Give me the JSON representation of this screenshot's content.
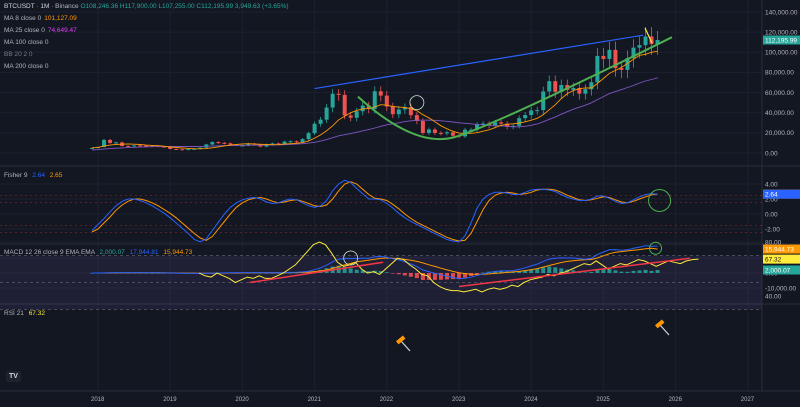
{
  "header": {
    "symbol": "BTCUSDT",
    "interval": "1M",
    "exchange": "Binance",
    "ohlc": "O108,246.36 H117,900.00 L107,255.00 C112,195.99 3,949.63 (+3.65%)",
    "ma_rows": [
      {
        "label": "MA 8 close 0",
        "value": "101,127.09",
        "color": "#ff9800"
      },
      {
        "label": "MA 25 close 0",
        "value": "74,649.47",
        "color": "#e040fb"
      },
      {
        "label": "MA 100 close 0",
        "value": "",
        "color": "#b2b5be"
      },
      {
        "label": "BB 20 2 0",
        "value": "",
        "color": "#787b86"
      },
      {
        "label": "MA 200 close 0",
        "value": "",
        "color": "#b2b5be"
      }
    ]
  },
  "fisher": {
    "label": "Fisher 9",
    "v1": "2.64",
    "v2": "2.65",
    "c1": "#2962ff",
    "c2": "#ff9800"
  },
  "macd": {
    "label": "MACD 12 26 close 9 EMA EMA",
    "v1": "2,000.07",
    "v2": "17,944.81",
    "v3": "15,944.73"
  },
  "rsi": {
    "label": "RSI 21",
    "value": "67.32"
  },
  "tv_logo": "TV",
  "colors": {
    "up": "#26a69a",
    "down": "#ef5350",
    "ma8": "#ff9800",
    "ma25": "#7e57c2",
    "trend_blue": "#2962ff",
    "trend_green": "#4caf50",
    "rsi_line": "#ffeb3b",
    "rsi_trend": "#f23645",
    "macd_line": "#2962ff",
    "signal_line": "#ff9800",
    "hist_pos": "#26a69a",
    "hist_neg": "#ff5252"
  },
  "chart_data": [
    {
      "type": "candlestick",
      "x_axis": {
        "labels": [
          "2018",
          "2019",
          "2020",
          "2021",
          "2022",
          "2023",
          "2024",
          "2025",
          "2026",
          "2027"
        ]
      },
      "y_axis": {
        "ticks": [
          "140,000.00",
          "120,000.00",
          "100,000.00",
          "80,000.00",
          "60,000.00",
          "40,000.00",
          "20,000.00",
          "0.00"
        ]
      },
      "price_tags": [
        {
          "label": "112,195.99",
          "value": 112196,
          "color": "#26a69a"
        }
      ],
      "closes": [
        5000,
        6000,
        13000,
        10000,
        10500,
        7000,
        6800,
        7500,
        7400,
        7200,
        6900,
        6400,
        6300,
        4000,
        3700,
        3500,
        3800,
        4100,
        5300,
        8500,
        10800,
        10100,
        9600,
        8300,
        7500,
        7500,
        9300,
        8500,
        6400,
        8600,
        9500,
        9100,
        11300,
        11600,
        10800,
        13800,
        19700,
        29000,
        33100,
        45100,
        58800,
        57700,
        37300,
        35000,
        41500,
        47100,
        43800,
        61300,
        57000,
        46200,
        38500,
        43200,
        45500,
        37600,
        31800,
        19900,
        23300,
        20000,
        19400,
        20500,
        17200,
        16500,
        23100,
        23100,
        28400,
        29200,
        27200,
        30500,
        29200,
        26000,
        27000,
        34600,
        37700,
        42300,
        42600,
        61100,
        71300,
        60700,
        67500,
        62700,
        64600,
        58900,
        63300,
        70300,
        96400,
        93400,
        102400,
        84300,
        82500,
        94200,
        104600,
        107100,
        115700,
        108200,
        112196
      ],
      "ma8": [
        5200,
        5600,
        7000,
        7800,
        8500,
        8700,
        8900,
        8700,
        8400,
        7800,
        7500,
        7200,
        6800,
        6000,
        5500,
        5000,
        4600,
        4300,
        4200,
        4400,
        5200,
        6100,
        7000,
        7800,
        8500,
        8900,
        9200,
        8900,
        8600,
        8400,
        8200,
        8300,
        8800,
        9200,
        9600,
        10300,
        12000,
        14800,
        18000,
        22000,
        27000,
        33000,
        36500,
        40000,
        42300,
        43900,
        44100,
        45800,
        48000,
        47500,
        46200,
        45600,
        45200,
        44000,
        42000,
        38000,
        35000,
        31000,
        27000,
        24000,
        21500,
        19800,
        19500,
        19600,
        20200,
        21600,
        23000,
        25200,
        27500,
        28500,
        29000,
        29800,
        31000,
        32600,
        34500,
        38000,
        43000,
        48000,
        54000,
        59000,
        62000,
        63800,
        64600,
        64500,
        69000,
        74000,
        79000,
        82000,
        85000,
        89000,
        93000,
        97000,
        98000,
        100000,
        101127
      ],
      "ma25": [
        3000,
        3400,
        3900,
        4400,
        4800,
        5100,
        5400,
        5700,
        5900,
        6100,
        6300,
        6400,
        6500,
        6500,
        6500,
        6500,
        6500,
        6500,
        6600,
        6700,
        6900,
        7100,
        7300,
        7400,
        7500,
        7500,
        7600,
        7700,
        7700,
        7800,
        7900,
        8000,
        8200,
        8500,
        8800,
        9200,
        9800,
        10600,
        11800,
        13300,
        15200,
        17100,
        18200,
        19300,
        20600,
        22000,
        23200,
        24800,
        26500,
        28000,
        29000,
        30000,
        31200,
        32000,
        32600,
        32600,
        32700,
        32500,
        32000,
        31500,
        30800,
        30000,
        29500,
        29000,
        28400,
        28000,
        27500,
        27200,
        27000,
        26500,
        26000,
        26000,
        26500,
        27500,
        28800,
        31000,
        33500,
        35800,
        38500,
        41000,
        43500,
        45500,
        47500,
        49800,
        53000,
        56000,
        59000,
        61000,
        63000,
        65000,
        67000,
        69500,
        71500,
        73000,
        74649
      ],
      "annotations": [
        {
          "shape": "trend-line",
          "color": "#2962ff",
          "from": {
            "x": 2021.0,
            "y": 64000
          },
          "to": {
            "x": 2025.55,
            "y": 117000
          }
        },
        {
          "shape": "parabolic-support",
          "color": "#4caf50",
          "from": {
            "x": 2021.6,
            "y": 56000
          },
          "bottom": {
            "x": 2022.95,
            "y": 16000
          },
          "to": {
            "x": 2025.95,
            "y": 115000
          }
        }
      ]
    },
    {
      "type": "line",
      "name": "Fisher 9",
      "y_axis": {
        "ticks": [
          "4.00",
          "2.00",
          "0.00",
          "-2.00"
        ]
      },
      "price_tags": [
        {
          "label": "2.65",
          "value": 2.65,
          "color": "#ff9800"
        },
        {
          "label": "2.64",
          "value": 2.64,
          "color": "#2962ff"
        }
      ],
      "fisher": [
        -2.2,
        -1.4,
        -0.6,
        0.3,
        1.1,
        1.7,
        2.0,
        2.0,
        1.8,
        1.5,
        1.1,
        0.6,
        0.1,
        -0.5,
        -1.2,
        -1.9,
        -2.6,
        -3.4,
        -3.7,
        -3.3,
        -2.2,
        -1.1,
        0.0,
        0.9,
        1.5,
        1.9,
        2.1,
        2.2,
        2.0,
        1.6,
        1.4,
        1.5,
        1.8,
        2.0,
        1.9,
        1.5,
        1.1,
        0.9,
        1.1,
        1.8,
        3.1,
        4.0,
        4.5,
        4.2,
        3.4,
        2.7,
        2.0,
        2.0,
        1.9,
        1.4,
        0.8,
        0.1,
        -0.5,
        -1.0,
        -1.4,
        -1.8,
        -2.2,
        -2.6,
        -3.0,
        -3.4,
        -3.6,
        -3.7,
        -2.9,
        -1.2,
        0.8,
        2.0,
        2.6,
        2.9,
        2.9,
        2.8,
        2.6,
        2.6,
        2.9,
        3.2,
        3.3,
        3.3,
        3.2,
        3.0,
        2.6,
        2.2,
        2.0,
        1.8,
        1.8,
        2.0,
        2.4,
        2.4,
        2.1,
        1.7,
        1.4,
        1.5,
        1.9,
        2.3,
        2.6,
        2.7,
        2.64
      ],
      "trigger": [
        -2.4,
        -2.0,
        -1.2,
        -0.4,
        0.5,
        1.2,
        1.7,
        2.0,
        2.0,
        1.8,
        1.5,
        1.1,
        0.6,
        0.1,
        -0.5,
        -1.2,
        -1.9,
        -2.6,
        -3.2,
        -3.5,
        -3.0,
        -2.0,
        -1.0,
        0.0,
        0.9,
        1.5,
        1.9,
        2.1,
        2.2,
        2.0,
        1.7,
        1.5,
        1.6,
        1.8,
        1.9,
        1.7,
        1.4,
        1.1,
        1.0,
        1.2,
        2.0,
        3.1,
        4.0,
        4.3,
        4.0,
        3.3,
        2.6,
        2.1,
        2.0,
        1.8,
        1.3,
        0.7,
        0.0,
        -0.6,
        -1.1,
        -1.5,
        -1.9,
        -2.3,
        -2.7,
        -3.1,
        -3.4,
        -3.6,
        -3.5,
        -2.6,
        -1.0,
        0.6,
        1.8,
        2.5,
        2.8,
        2.9,
        2.8,
        2.6,
        2.7,
        2.9,
        3.2,
        3.3,
        3.3,
        3.2,
        2.9,
        2.5,
        2.2,
        1.9,
        1.8,
        1.9,
        2.1,
        2.3,
        2.2,
        1.9,
        1.6,
        1.5,
        1.7,
        2.0,
        2.3,
        2.55,
        2.65
      ]
    },
    {
      "type": "bar",
      "name": "MACD 12 26 close 9 EMA EMA",
      "y_axis": {
        "ticks": [
          "10,000.00",
          "0.00",
          "-10,000.00"
        ]
      },
      "price_tags": [
        {
          "label": "15,944.73",
          "value": 15944.73,
          "color": "#ff9800"
        },
        {
          "label": "2,000.07",
          "value": 2000.07,
          "color": "#26a69a"
        }
      ],
      "macd": [
        0,
        0,
        100,
        200,
        300,
        300,
        300,
        300,
        300,
        300,
        200,
        200,
        100,
        0,
        -100,
        -200,
        -300,
        -300,
        -300,
        -200,
        -100,
        0,
        100,
        200,
        300,
        300,
        300,
        300,
        300,
        200,
        200,
        200,
        300,
        400,
        500,
        700,
        1200,
        2200,
        3500,
        5200,
        7400,
        9200,
        9600,
        9600,
        9600,
        9800,
        9800,
        10800,
        11000,
        10500,
        9500,
        8700,
        7500,
        6000,
        4300,
        2000,
        900,
        -200,
        -1300,
        -2200,
        -3000,
        -3800,
        -3500,
        -2800,
        -1600,
        -500,
        300,
        1000,
        1400,
        1400,
        1600,
        2500,
        3500,
        4700,
        5900,
        7700,
        9300,
        9800,
        10100,
        10000,
        10000,
        9500,
        9200,
        9700,
        12400,
        14000,
        15500,
        15600,
        15200,
        15500,
        16500,
        17300,
        18200,
        17900,
        17944.81
      ],
      "signal": [
        0,
        0,
        0,
        100,
        100,
        200,
        200,
        200,
        200,
        200,
        200,
        200,
        100,
        100,
        0,
        0,
        -100,
        -100,
        -200,
        -200,
        -200,
        -100,
        -100,
        0,
        0,
        100,
        100,
        200,
        200,
        200,
        200,
        200,
        200,
        300,
        300,
        400,
        600,
        900,
        1400,
        2000,
        3100,
        4300,
        5500,
        6500,
        7400,
        8000,
        8600,
        9200,
        9700,
        10000,
        9800,
        9500,
        9100,
        8500,
        7700,
        6700,
        5500,
        4400,
        3200,
        2100,
        1100,
        200,
        -400,
        -800,
        -900,
        -800,
        -600,
        -300,
        0,
        400,
        700,
        1100,
        1600,
        2200,
        2900,
        3900,
        5000,
        6000,
        7000,
        7700,
        8200,
        8600,
        8800,
        9000,
        10000,
        11500,
        12900,
        13800,
        14300,
        14700,
        15100,
        15600,
        16100,
        16500,
        15944.73
      ],
      "histogram": [
        0,
        0,
        100,
        100,
        200,
        100,
        100,
        100,
        100,
        100,
        0,
        0,
        0,
        -100,
        -100,
        -200,
        -200,
        -200,
        -100,
        0,
        100,
        100,
        200,
        200,
        300,
        200,
        200,
        100,
        100,
        0,
        0,
        0,
        100,
        100,
        200,
        300,
        600,
        1300,
        2100,
        3200,
        4300,
        4900,
        4100,
        3100,
        2200,
        1800,
        1200,
        1600,
        1300,
        500,
        -300,
        -800,
        -1600,
        -2500,
        -3400,
        -4700,
        -4600,
        -4600,
        -4500,
        -4300,
        -4100,
        -4000,
        -3100,
        -2000,
        -700,
        300,
        900,
        1300,
        1400,
        1000,
        900,
        1400,
        1900,
        2500,
        3000,
        3800,
        4300,
        3800,
        3100,
        2300,
        1800,
        900,
        400,
        700,
        2400,
        2500,
        2600,
        1800,
        900,
        800,
        1400,
        1700,
        2100,
        1400,
        2000.07
      ]
    },
    {
      "type": "line",
      "name": "RSI 21",
      "y_axis": {
        "ticks": [
          "80.00",
          "60.00",
          "40.00"
        ]
      },
      "price_tags": [
        {
          "label": "67.32",
          "value": 67.32,
          "color": "#ffeb3b"
        }
      ],
      "x_start": 2019.4,
      "rsi": [
        57,
        55,
        54,
        57,
        55,
        53,
        50,
        52,
        54,
        53,
        55,
        53,
        53,
        55,
        57,
        60,
        63,
        68,
        73,
        78,
        80,
        78,
        72,
        65,
        62,
        63,
        65,
        60,
        57,
        58,
        56,
        60,
        64,
        68,
        67,
        63,
        60,
        56,
        55,
        50,
        47,
        45,
        44,
        44,
        43,
        44,
        45,
        43,
        45,
        46,
        45,
        46,
        48,
        47,
        50,
        52,
        53,
        54,
        56,
        55,
        57,
        58,
        60,
        62,
        64,
        63,
        66,
        63,
        60,
        62,
        64,
        63,
        65,
        67,
        66,
        64,
        62,
        64,
        66,
        65,
        64,
        66,
        67,
        67.32
      ],
      "annotations": [
        {
          "shape": "trend-line",
          "color": "#f23645",
          "from": {
            "x": 2020.1,
            "y": 50
          },
          "to": {
            "x": 2021.95,
            "y": 65
          }
        },
        {
          "shape": "trend-line",
          "color": "#f23645",
          "from": {
            "x": 2023.0,
            "y": 47
          },
          "to": {
            "x": 2026.2,
            "y": 68
          }
        }
      ]
    }
  ]
}
